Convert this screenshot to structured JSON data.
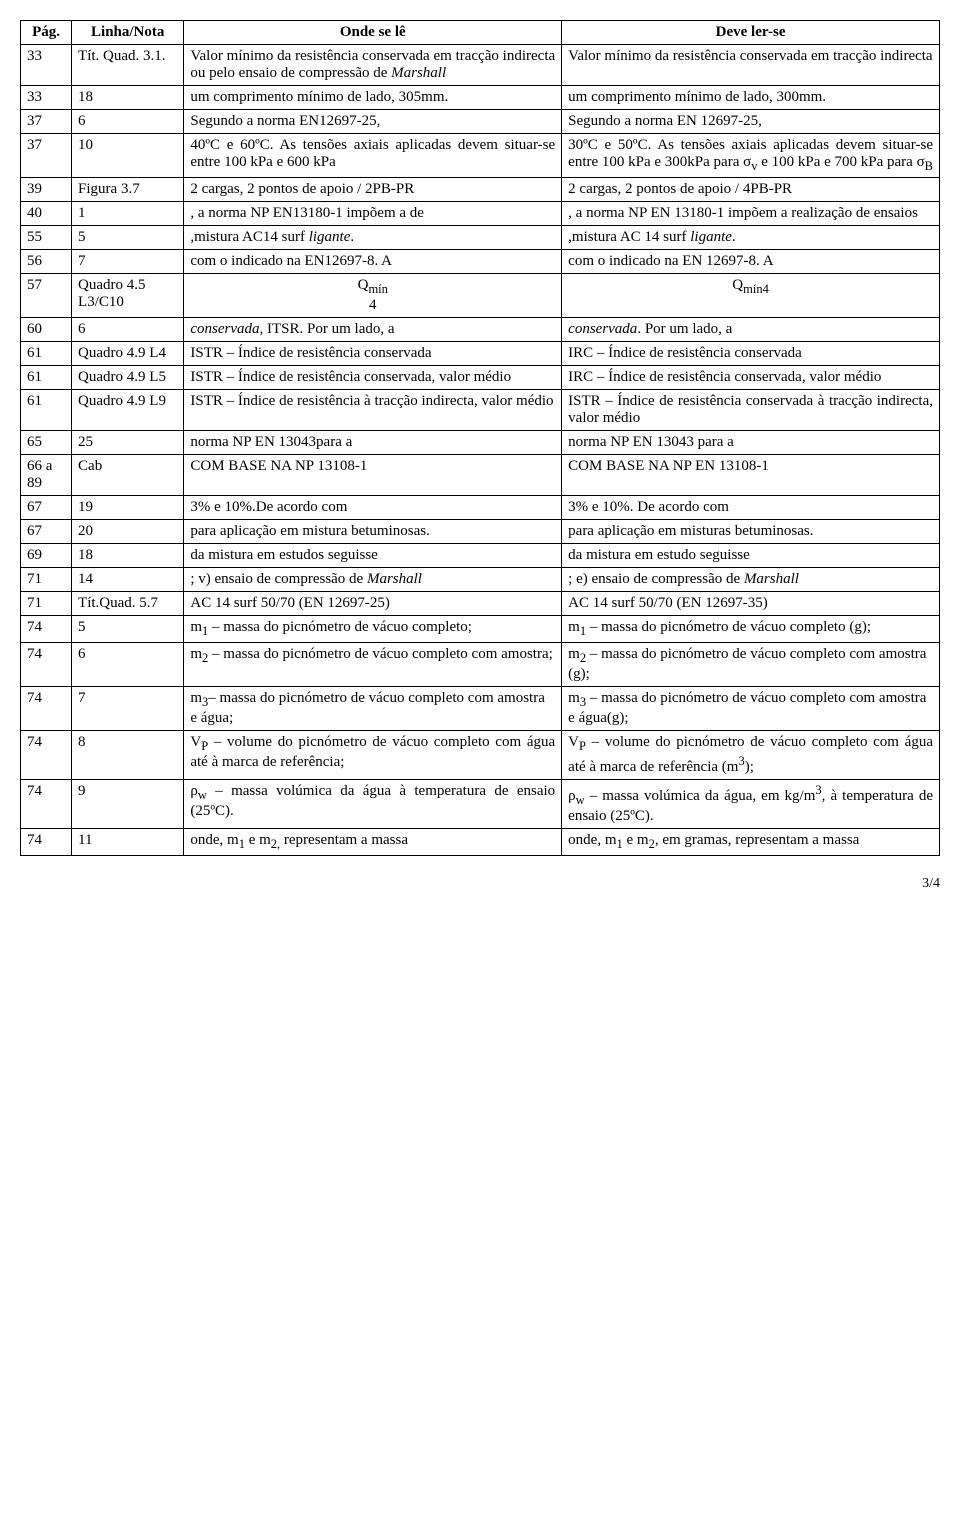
{
  "headers": {
    "pag": "Pág.",
    "linha": "Linha/Nota",
    "onde": "Onde se lê",
    "deve": "Deve ler-se"
  },
  "rows": [
    {
      "pag": "33",
      "linha": "Tít. Quad. 3.1.",
      "onde": "Valor mínimo da resistência conservada em tracção indirecta ou pelo ensaio de compressão de <i>Marshall</i>",
      "deve": "Valor mínimo da resistência conservada em tracção indirecta",
      "justify": true
    },
    {
      "pag": "33",
      "linha": "18",
      "onde": "um comprimento mínimo de lado, 305mm.",
      "deve": "um comprimento mínimo de lado, 300mm."
    },
    {
      "pag": "37",
      "linha": "6",
      "onde": "Segundo a norma EN12697-25,",
      "deve": "Segundo a norma EN 12697-25,"
    },
    {
      "pag": "37",
      "linha": "10",
      "onde": "40ºC e 60ºC. As tensões axiais aplicadas devem situar-se entre 100 kPa e 600 kPa",
      "deve": "30ºC e 50ºC. As tensões axiais aplicadas devem situar-se entre 100 kPa e 300kPa para σ<sub>v</sub> e 100 kPa e 700 kPa para σ<sub>B</sub>",
      "justify": true
    },
    {
      "pag": "39",
      "linha": "Figura 3.7",
      "onde": "2 cargas, 2 pontos de apoio / 2PB-PR",
      "deve": "2 cargas, 2 pontos de apoio / 4PB-PR"
    },
    {
      "pag": "40",
      "linha": "1",
      "onde": ", a norma NP EN13180-1 impõem a de",
      "deve": ", a norma NP EN 13180-1 impõem a realização de ensaios"
    },
    {
      "pag": "55",
      "linha": "5",
      "onde": ",mistura AC14 surf <i>ligante</i>.",
      "deve": ",mistura AC 14 surf <i>ligante</i>."
    },
    {
      "pag": "56",
      "linha": "7",
      "onde": "com o indicado na EN12697-8. A",
      "deve": "com o indicado na EN 12697-8. A"
    },
    {
      "pag": "57",
      "linha": "Quadro 4.5 L3/C10",
      "onde": "Q<sub>mín</sub><br>4",
      "deve": "Q<sub>mín4</sub>",
      "center": true
    },
    {
      "pag": "60",
      "linha": "6",
      "onde": "<i>conservada</i>, ITSR. Por um lado, a",
      "deve": "<i>conservada</i>. Por um lado, a"
    },
    {
      "pag": "61",
      "linha": "Quadro 4.9 L4",
      "onde": "ISTR – Índice de resistência conservada",
      "deve": "IRC – Índice de resistência conservada"
    },
    {
      "pag": "61",
      "linha": "Quadro 4.9 L5",
      "onde": "ISTR – Índice de resistência conservada, valor médio",
      "deve": "IRC – Índice de resistência conservada, valor médio"
    },
    {
      "pag": "61",
      "linha": "Quadro 4.9 L9",
      "onde": "ISTR – Índice de resistência à tracção indirecta, valor médio",
      "deve": "ISTR – Índice de resistência conservada à tracção indirecta, valor médio",
      "justify": true
    },
    {
      "pag": "65",
      "linha": "25",
      "onde": "norma NP EN 13043para a",
      "deve": "norma NP EN 13043 para a"
    },
    {
      "pag": "66 a 89",
      "linha": "Cab",
      "onde": "COM BASE NA NP 13108-1",
      "deve": "COM BASE NA NP EN 13108-1"
    },
    {
      "pag": "67",
      "linha": "19",
      "onde": "3% e 10%.De acordo com",
      "deve": "3% e 10%. De acordo com"
    },
    {
      "pag": "67",
      "linha": "20",
      "onde": "para aplicação em mistura betuminosas.",
      "deve": "para aplicação em misturas betuminosas."
    },
    {
      "pag": "69",
      "linha": "18",
      "onde": "da mistura em estudos seguisse",
      "deve": "da mistura em estudo seguisse"
    },
    {
      "pag": "71",
      "linha": "14",
      "onde": "; v) ensaio de compressão de <i>Marshall</i>",
      "deve": "; e) ensaio de compressão de <i>Marshall</i>"
    },
    {
      "pag": "71",
      "linha": "Tít.Quad. 5.7",
      "onde": "AC 14 surf 50/70 (EN 12697-25)",
      "deve": "AC 14 surf 50/70 (EN 12697-35)"
    },
    {
      "pag": "74",
      "linha": "5",
      "onde": "m<sub>1</sub> – massa do picnómetro de vácuo completo;",
      "deve": "m<sub>1</sub> – massa do picnómetro de vácuo completo (g);"
    },
    {
      "pag": "74",
      "linha": "6",
      "onde": "m<sub>2</sub> – massa do picnómetro de vácuo completo com amostra;",
      "deve": "m<sub>2</sub> – massa do picnómetro de vácuo completo com amostra (g);"
    },
    {
      "pag": "74",
      "linha": "7",
      "onde": "m<sub>3</sub>– massa do picnómetro de vácuo completo com amostra e água;",
      "deve": "m<sub>3</sub> – massa do picnómetro de vácuo completo com amostra e água(g);"
    },
    {
      "pag": "74",
      "linha": "8",
      "onde": "V<sub>P</sub> – volume do picnómetro de vácuo completo com água até à marca de referência;",
      "deve": "V<sub>P</sub> – volume do picnómetro de vácuo completo com água até à marca de referência (m<sup>3</sup>);",
      "justify": true
    },
    {
      "pag": "74",
      "linha": "9",
      "onde": "ρ<sub>w</sub> – massa volúmica da água à temperatura de ensaio (25ºC).",
      "deve": "ρ<sub>w</sub> – massa volúmica da água, em kg/m<sup>3</sup>, à temperatura de ensaio (25ºC).",
      "justify": true
    },
    {
      "pag": "74",
      "linha": "11",
      "onde": "onde, m<sub>1</sub> e m<sub>2,</sub> representam a massa",
      "deve": "onde, m<sub>1</sub> e m<sub>2</sub>, em gramas, representam a massa",
      "justify": true
    }
  ],
  "footer": "3/4"
}
